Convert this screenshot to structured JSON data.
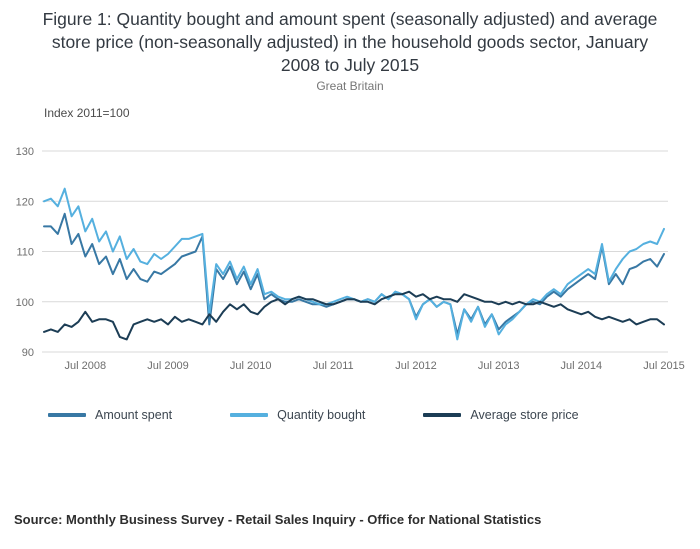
{
  "header": {
    "title": "Figure 1: Quantity bought and amount spent (seasonally adjusted) and average store price (non-seasonally adjusted) in the household goods sector, January 2008 to July 2015",
    "subtitle": "Great Britain"
  },
  "footer": {
    "source": "Source: Monthly Business Survey - Retail Sales Inquiry - Office for National Statistics"
  },
  "chart_data": {
    "type": "line",
    "title": "Figure 1: Quantity bought and amount spent (seasonally adjusted) and average store price (non-seasonally adjusted) in the household goods sector, January 2008 to July 2015",
    "subtitle": "Great Britain",
    "axis_note": "Index 2011=100",
    "x_start": "Jan 2008",
    "x_end": "Jul 2015",
    "x_frequency": "monthly",
    "xticks": [
      {
        "label": "Jul 2008",
        "index": 6
      },
      {
        "label": "Jul 2009",
        "index": 18
      },
      {
        "label": "Jul 2010",
        "index": 30
      },
      {
        "label": "Jul 2011",
        "index": 42
      },
      {
        "label": "Jul 2012",
        "index": 54
      },
      {
        "label": "Jul 2013",
        "index": 66
      },
      {
        "label": "Jul 2014",
        "index": 78
      },
      {
        "label": "Jul 2015",
        "index": 90
      }
    ],
    "yticks": [
      90,
      100,
      110,
      120,
      130
    ],
    "ylim": [
      90,
      130
    ],
    "grid": "horizontal",
    "legend_position": "bottom",
    "series": [
      {
        "name": "Amount spent",
        "color": "#3878a4",
        "values": [
          115,
          115,
          113.5,
          117.5,
          111.5,
          113.5,
          109,
          111.5,
          107.5,
          109,
          105.5,
          108.5,
          104.5,
          106.5,
          104.5,
          104,
          106,
          105.5,
          106.5,
          107.5,
          109,
          109.5,
          110,
          113,
          95.5,
          106.5,
          104.5,
          107,
          103.5,
          106,
          102.5,
          105.5,
          100.5,
          101.5,
          100.5,
          100,
          100,
          100.5,
          100,
          99.5,
          99.5,
          99,
          99.5,
          100,
          100.5,
          100.5,
          100,
          100.5,
          100,
          101.5,
          100.5,
          102,
          101.5,
          100.5,
          97,
          99.5,
          100.5,
          99,
          100,
          99.5,
          93.5,
          98.5,
          96.5,
          99,
          95.5,
          97.5,
          94.5,
          96,
          97,
          98,
          99.5,
          100,
          99.5,
          101,
          102,
          101,
          102.5,
          103.5,
          104.5,
          105.5,
          104.5,
          111,
          103.5,
          105.5,
          103.5,
          106.5,
          107,
          108,
          108.5,
          107,
          109.5
        ]
      },
      {
        "name": "Quantity bought",
        "color": "#55b0df",
        "values": [
          120,
          120.5,
          119,
          122.5,
          117,
          119,
          114,
          116.5,
          112,
          114,
          110,
          113,
          108.5,
          110.5,
          108,
          107.5,
          109.5,
          108.5,
          109.5,
          111,
          112.5,
          112.5,
          113,
          113.5,
          97.5,
          107.5,
          105.5,
          108,
          104.5,
          107,
          103.5,
          106.5,
          101.5,
          102,
          101,
          100.5,
          100.5,
          101,
          100.5,
          100,
          99.5,
          99.5,
          100,
          100.5,
          101,
          100.5,
          100,
          100.5,
          100,
          101.5,
          100.5,
          102,
          101.5,
          100.5,
          96.5,
          99.5,
          100.5,
          99,
          100,
          99.5,
          92.5,
          98.5,
          96,
          99,
          95,
          97.5,
          93.5,
          95.5,
          96.5,
          98,
          99.5,
          100.5,
          100,
          101.5,
          102.5,
          101.5,
          103.5,
          104.5,
          105.5,
          106.5,
          105.5,
          111.5,
          104,
          106.5,
          108.5,
          110,
          110.5,
          111.5,
          112,
          111.5,
          114.5
        ]
      },
      {
        "name": "Average store price",
        "color": "#1c3d55",
        "values": [
          94,
          94.5,
          94,
          95.5,
          95,
          96,
          98,
          96,
          96.5,
          96.5,
          96,
          93,
          92.5,
          95.5,
          96,
          96.5,
          96,
          96.5,
          95.5,
          97,
          96,
          96.5,
          96,
          95.5,
          97.5,
          96,
          98,
          99.5,
          98.5,
          99.5,
          98,
          97.5,
          99,
          100,
          100.5,
          99.5,
          100.5,
          101,
          100.5,
          100.5,
          100,
          99.5,
          99.5,
          100,
          100.5,
          100.5,
          100,
          100,
          99.5,
          100.5,
          101,
          101.5,
          101.5,
          102,
          101,
          101.5,
          100.5,
          101,
          100.5,
          100.5,
          100,
          101.5,
          101,
          100.5,
          100,
          100,
          99.5,
          100,
          99.5,
          100,
          99.5,
          99.5,
          100,
          99.5,
          99,
          99.5,
          98.5,
          98,
          97.5,
          98,
          97,
          96.5,
          97,
          96.5,
          96,
          96.5,
          95.5,
          96,
          96.5,
          96.5,
          95.5
        ]
      }
    ]
  }
}
